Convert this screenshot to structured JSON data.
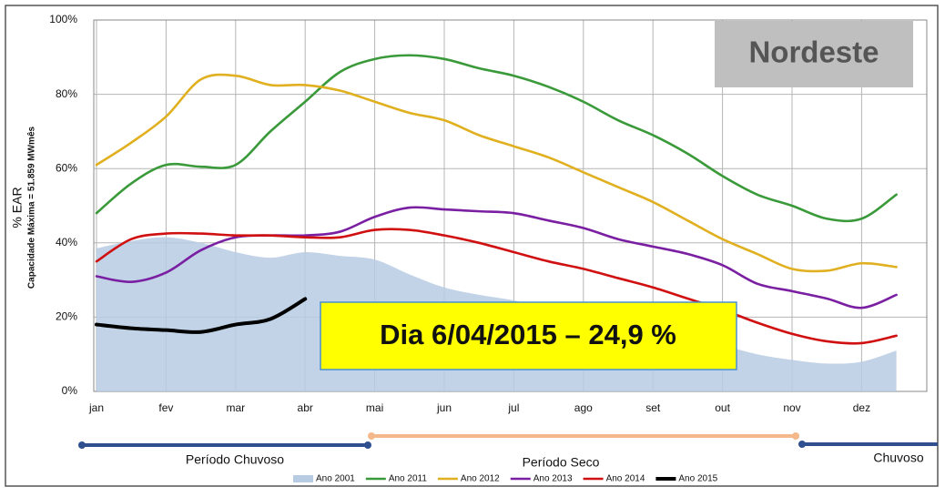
{
  "chart_data": {
    "type": "line",
    "title": "Nordeste",
    "annotation": "Dia 6/04/2015 – 24,9 %",
    "y_label": "% EAR",
    "y_sublabel": "Capacidade Máxima = 51.859 MWmês",
    "periods": [
      "Período Chuvoso",
      "Período Seco",
      "Chuvoso"
    ],
    "categories": [
      "jan",
      null,
      "fev",
      null,
      "mar",
      null,
      "abr",
      null,
      "mai",
      null,
      "jun",
      null,
      "jul",
      null,
      "ago",
      null,
      "set",
      null,
      "out",
      null,
      "nov",
      null,
      "dez",
      null
    ],
    "ylim": [
      0,
      100
    ],
    "yticks": [
      {
        "value": 0,
        "label": "0%"
      },
      {
        "value": 20,
        "label": "20%"
      },
      {
        "value": 40,
        "label": "40%"
      },
      {
        "value": 60,
        "label": "60%"
      },
      {
        "value": 80,
        "label": "80%"
      },
      {
        "value": 100,
        "label": "100%"
      }
    ],
    "grid": true,
    "series": [
      {
        "name": "Ano 2001",
        "color": "#b7cbe3",
        "fill": true,
        "values": [
          38.5,
          40.5,
          41.5,
          40,
          37.5,
          36,
          37.5,
          36.5,
          35.5,
          31.5,
          28,
          26,
          24.5,
          22.5,
          21,
          19,
          17,
          15,
          12.5,
          10,
          8.5,
          7.5,
          8,
          11
        ]
      },
      {
        "name": "Ano 2011",
        "color": "#3a9a3a",
        "values": [
          48,
          56,
          61,
          60.5,
          61,
          70,
          78,
          86,
          89.5,
          90.5,
          89.5,
          87,
          85,
          82,
          78,
          73,
          69,
          64,
          58,
          53,
          50,
          46.5,
          46.5,
          53
        ]
      },
      {
        "name": "Ano 2012",
        "color": "#e0b020",
        "values": [
          61,
          67,
          74,
          84,
          85,
          82.5,
          82.5,
          81,
          78,
          75,
          73,
          69,
          66,
          63,
          59,
          55,
          51,
          46,
          41,
          37,
          33,
          32.5,
          34.5,
          33.5
        ]
      },
      {
        "name": "Ano 2013",
        "color": "#7a1fa2",
        "values": [
          31,
          29.5,
          32,
          38,
          41.5,
          42,
          42,
          43,
          47,
          49.5,
          49,
          48.5,
          48,
          46,
          44,
          41,
          39,
          37,
          34,
          29,
          27,
          25,
          22.5,
          26
        ]
      },
      {
        "name": "Ano 2014",
        "color": "#d01010",
        "values": [
          35,
          41,
          42.5,
          42.5,
          42,
          42,
          41.5,
          41.5,
          43.5,
          43.5,
          42,
          40,
          37.5,
          35,
          33,
          30.5,
          28,
          25,
          22,
          18.5,
          15.5,
          13.5,
          13,
          15
        ]
      },
      {
        "name": "Ano 2015",
        "color": "#000000",
        "width": 4,
        "values": [
          18,
          17,
          16.5,
          16,
          18,
          19.5,
          24.9,
          null,
          null,
          null,
          null,
          null,
          null,
          null,
          null,
          null,
          null,
          null,
          null,
          null,
          null,
          null,
          null,
          null
        ]
      }
    ]
  }
}
